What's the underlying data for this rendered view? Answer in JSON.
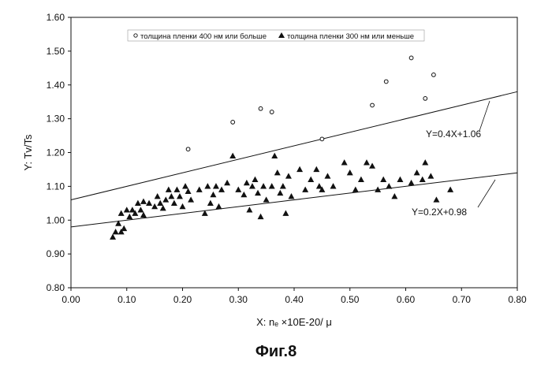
{
  "caption": "Фиг.8",
  "chart_data": {
    "type": "scatter",
    "xlabel": "X: nₑ ×10E-20/ μ",
    "ylabel": "Y: Tv/Ts",
    "xlim": [
      0.0,
      0.8
    ],
    "ylim": [
      0.8,
      1.6
    ],
    "xticks": [
      "0.00",
      "0.10",
      "0.20",
      "0.30",
      "0.40",
      "0.50",
      "0.60",
      "0.70",
      "0.80"
    ],
    "yticks": [
      "0.80",
      "0.90",
      "1.00",
      "1.10",
      "1.20",
      "1.30",
      "1.40",
      "1.50",
      "1.60"
    ],
    "grid": false,
    "legend_position": "top",
    "series": [
      {
        "name": "толщина пленки 400 нм или больше",
        "marker": "circle",
        "points": [
          [
            0.21,
            1.21
          ],
          [
            0.29,
            1.29
          ],
          [
            0.34,
            1.33
          ],
          [
            0.36,
            1.32
          ],
          [
            0.45,
            1.24
          ],
          [
            0.54,
            1.34
          ],
          [
            0.565,
            1.41
          ],
          [
            0.61,
            1.48
          ],
          [
            0.635,
            1.36
          ],
          [
            0.65,
            1.43
          ]
        ]
      },
      {
        "name": "толщина пленки 300 нм или меньше",
        "marker": "triangle",
        "points": [
          [
            0.075,
            0.95
          ],
          [
            0.08,
            0.965
          ],
          [
            0.085,
            0.99
          ],
          [
            0.09,
            0.965
          ],
          [
            0.09,
            1.02
          ],
          [
            0.095,
            0.975
          ],
          [
            0.1,
            1.03
          ],
          [
            0.105,
            1.01
          ],
          [
            0.11,
            1.03
          ],
          [
            0.115,
            1.02
          ],
          [
            0.12,
            1.05
          ],
          [
            0.125,
            1.03
          ],
          [
            0.13,
            1.055
          ],
          [
            0.13,
            1.015
          ],
          [
            0.14,
            1.05
          ],
          [
            0.15,
            1.04
          ],
          [
            0.155,
            1.07
          ],
          [
            0.16,
            1.05
          ],
          [
            0.165,
            1.035
          ],
          [
            0.17,
            1.06
          ],
          [
            0.175,
            1.09
          ],
          [
            0.18,
            1.07
          ],
          [
            0.185,
            1.05
          ],
          [
            0.19,
            1.09
          ],
          [
            0.195,
            1.07
          ],
          [
            0.2,
            1.04
          ],
          [
            0.205,
            1.1
          ],
          [
            0.21,
            1.085
          ],
          [
            0.215,
            1.06
          ],
          [
            0.23,
            1.09
          ],
          [
            0.24,
            1.02
          ],
          [
            0.245,
            1.1
          ],
          [
            0.25,
            1.05
          ],
          [
            0.255,
            1.075
          ],
          [
            0.26,
            1.1
          ],
          [
            0.265,
            1.04
          ],
          [
            0.27,
            1.09
          ],
          [
            0.28,
            1.11
          ],
          [
            0.29,
            1.19
          ],
          [
            0.3,
            1.09
          ],
          [
            0.31,
            1.075
          ],
          [
            0.315,
            1.11
          ],
          [
            0.32,
            1.03
          ],
          [
            0.325,
            1.1
          ],
          [
            0.33,
            1.12
          ],
          [
            0.335,
            1.08
          ],
          [
            0.34,
            1.01
          ],
          [
            0.345,
            1.1
          ],
          [
            0.35,
            1.06
          ],
          [
            0.36,
            1.1
          ],
          [
            0.365,
            1.19
          ],
          [
            0.37,
            1.14
          ],
          [
            0.375,
            1.08
          ],
          [
            0.38,
            1.1
          ],
          [
            0.385,
            1.02
          ],
          [
            0.39,
            1.13
          ],
          [
            0.395,
            1.07
          ],
          [
            0.41,
            1.15
          ],
          [
            0.42,
            1.09
          ],
          [
            0.43,
            1.12
          ],
          [
            0.44,
            1.15
          ],
          [
            0.445,
            1.1
          ],
          [
            0.45,
            1.09
          ],
          [
            0.46,
            1.13
          ],
          [
            0.47,
            1.1
          ],
          [
            0.49,
            1.17
          ],
          [
            0.5,
            1.14
          ],
          [
            0.51,
            1.09
          ],
          [
            0.52,
            1.12
          ],
          [
            0.53,
            1.17
          ],
          [
            0.54,
            1.16
          ],
          [
            0.55,
            1.09
          ],
          [
            0.56,
            1.12
          ],
          [
            0.57,
            1.1
          ],
          [
            0.58,
            1.07
          ],
          [
            0.59,
            1.12
          ],
          [
            0.61,
            1.11
          ],
          [
            0.62,
            1.14
          ],
          [
            0.63,
            1.12
          ],
          [
            0.635,
            1.17
          ],
          [
            0.645,
            1.13
          ],
          [
            0.655,
            1.06
          ],
          [
            0.68,
            1.09
          ]
        ]
      }
    ],
    "lines": [
      {
        "label": "Y=0.4X+1.06",
        "slope": 0.4,
        "intercept": 1.06
      },
      {
        "label": "Y=0.2X+0.98",
        "slope": 0.2,
        "intercept": 0.98
      }
    ]
  }
}
